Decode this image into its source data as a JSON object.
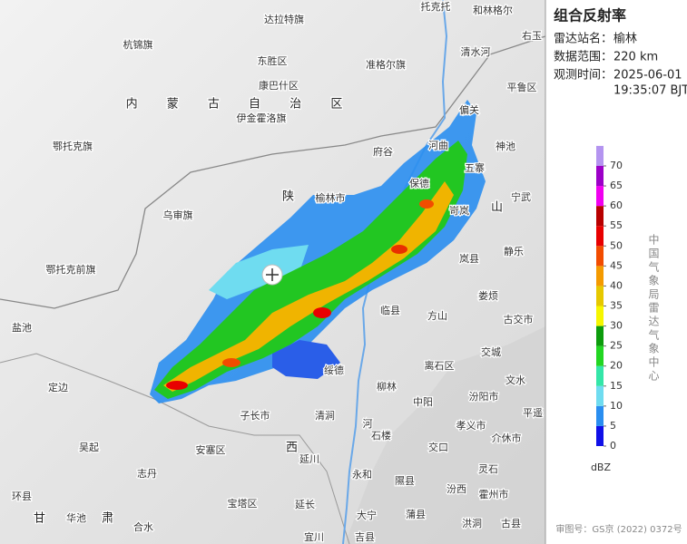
{
  "panel": {
    "title": "组合反射率",
    "fields": [
      {
        "label": "雷达站名：",
        "value": "榆林"
      },
      {
        "label": "数据范围：",
        "value": "220 km"
      }
    ],
    "time": {
      "label": "观测时间：",
      "date": "2025-06-01",
      "clock": "19:35:07 BJT"
    },
    "credit": "中国气象局雷达气象中心",
    "approval": "审图号：GS京 (2022) 0372号"
  },
  "legend": {
    "ticks": [
      0,
      5,
      10,
      15,
      20,
      25,
      30,
      35,
      40,
      45,
      50,
      55,
      60,
      65,
      70
    ],
    "colors": [
      "#1010e8",
      "#2a8ef0",
      "#6fdcf0",
      "#34e6a8",
      "#22d622",
      "#0c9c0c",
      "#f6f600",
      "#e6c800",
      "#f49a00",
      "#f24c00",
      "#e80000",
      "#b80000",
      "#f000f0",
      "#9c00c8",
      "#b494f0"
    ],
    "unit": "dBZ"
  },
  "map_labels": [
    "托克托",
    "和林格尔",
    "达拉特旗",
    "杭锦旗",
    "东胜区",
    "清水河",
    "准格尔旗",
    "右玉",
    "康巴什区",
    "平鲁区",
    "伊金霍洛旗",
    "偏关",
    "内 蒙 古 自 治 区",
    "鄂托克旗",
    "府谷",
    "河曲",
    "神池",
    "五寨",
    "保德",
    "陕",
    "榆林市",
    "宁武",
    "乌审旗",
    "岢岚",
    "山",
    "静乐",
    "岚县",
    "鄂托克前旗",
    "娄烦",
    "临县",
    "方山",
    "古交市",
    "盐池",
    "交城",
    "离石区",
    "绥德",
    "柳林",
    "文水",
    "定边",
    "中阳",
    "汾阳市",
    "子长市",
    "清涧",
    "孝义市",
    "平遥",
    "石楼",
    "介休市",
    "吴起",
    "安塞区",
    "西",
    "交口",
    "延川",
    "灵石",
    "志丹",
    "永和",
    "隰县",
    "汾西",
    "霍州市",
    "环县",
    "甘",
    "华池",
    "肃",
    "宝塔区",
    "延长",
    "大宁",
    "蒲县",
    "洪洞",
    "古县",
    "合水",
    "宜川",
    "吉县",
    "河"
  ]
}
